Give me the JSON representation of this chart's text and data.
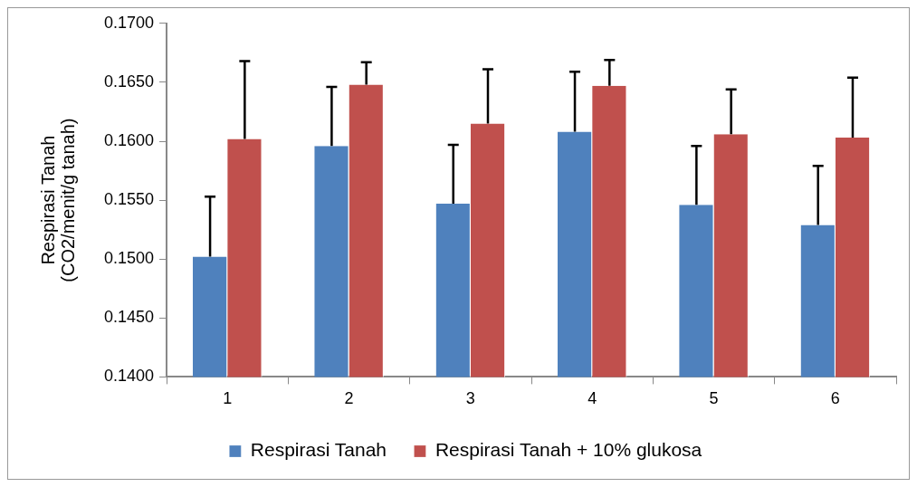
{
  "chart_data": {
    "type": "bar",
    "ylabel": "Respirasi Tanah\n(CO2/menit/g tanah)",
    "categories": [
      "1",
      "2",
      "3",
      "4",
      "5",
      "6"
    ],
    "series": [
      {
        "name": "Respirasi Tanah",
        "color": "#4f81bd",
        "values": [
          0.1502,
          0.1596,
          0.1547,
          0.1608,
          0.1546,
          0.1529
        ],
        "errors": [
          [
            0.1502,
            0.1553
          ],
          [
            0.1596,
            0.1646
          ],
          [
            0.1547,
            0.1597
          ],
          [
            0.1608,
            0.1659
          ],
          [
            0.1546,
            0.1596
          ],
          [
            0.1529,
            0.1579
          ]
        ]
      },
      {
        "name": "Respirasi Tanah + 10% glukosa",
        "color": "#c0504d",
        "values": [
          0.1602,
          0.1648,
          0.1615,
          0.1647,
          0.1606,
          0.1603
        ],
        "errors": [
          [
            0.1602,
            0.1668
          ],
          [
            0.1648,
            0.1667
          ],
          [
            0.1615,
            0.1661
          ],
          [
            0.1647,
            0.1669
          ],
          [
            0.1606,
            0.1644
          ],
          [
            0.1603,
            0.1654
          ]
        ]
      }
    ],
    "ylim": [
      0.14,
      0.17
    ],
    "yticks": [
      {
        "value": 0.14,
        "label": "0.1400"
      },
      {
        "value": 0.145,
        "label": "0.1450"
      },
      {
        "value": 0.15,
        "label": "0.1500"
      },
      {
        "value": 0.155,
        "label": "0.1550"
      },
      {
        "value": 0.16,
        "label": "0.1600"
      },
      {
        "value": 0.165,
        "label": "0.1650"
      },
      {
        "value": 0.17,
        "label": "0.1700"
      }
    ],
    "grid": false,
    "legend": "bottom"
  }
}
